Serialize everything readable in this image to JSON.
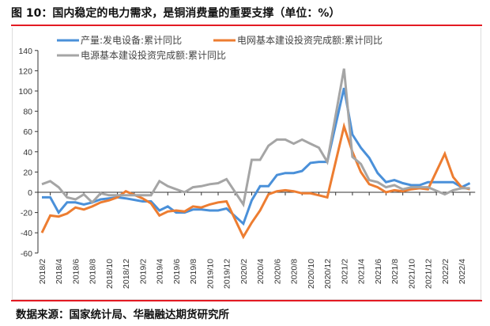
{
  "title": "图 10：国内稳定的电力需求，是铜消费量的重要支撑（单位：%）",
  "source": "数据来源：国家统计局、华融融达期货研究所",
  "chart_data": {
    "type": "line",
    "title": "",
    "xlabel": "",
    "ylabel": "",
    "ylim": [
      -60,
      140
    ],
    "yticks": [
      -60,
      -40,
      -20,
      0,
      20,
      40,
      60,
      80,
      100,
      120,
      140
    ],
    "xtick_labels": [
      "2018/2",
      "2018/4",
      "2018/6",
      "2018/8",
      "2018/10",
      "2018/12",
      "2019/2",
      "2019/4",
      "2019/6",
      "2019/8",
      "2019/10",
      "2019/12",
      "2020/2",
      "2020/4",
      "2020/6",
      "2020/8",
      "2020/10",
      "2020/12",
      "2021/2",
      "2021/4",
      "2021/6",
      "2021/8",
      "2021/10",
      "2021/12",
      "2022/2",
      "2022/4"
    ],
    "x": [
      "2018/2",
      "2018/3",
      "2018/4",
      "2018/5",
      "2018/6",
      "2018/7",
      "2018/8",
      "2018/9",
      "2018/10",
      "2018/11",
      "2018/12",
      "2019/2",
      "2019/3",
      "2019/4",
      "2019/5",
      "2019/6",
      "2019/7",
      "2019/8",
      "2019/9",
      "2019/10",
      "2019/11",
      "2019/12",
      "2020/2",
      "2020/3",
      "2020/4",
      "2020/5",
      "2020/6",
      "2020/7",
      "2020/8",
      "2020/9",
      "2020/10",
      "2020/11",
      "2020/12",
      "2021/2",
      "2021/3",
      "2021/4",
      "2021/5",
      "2021/6",
      "2021/7",
      "2021/8",
      "2021/9",
      "2021/10",
      "2021/11",
      "2021/12",
      "2022/2",
      "2022/3",
      "2022/4",
      "2022/5"
    ],
    "grid": false,
    "legend": "top",
    "series": [
      {
        "name": "产量:发电设备:累计同比",
        "color": "#4a90d9",
        "values": [
          -5,
          -5,
          -20,
          -10,
          -10,
          -12,
          -10,
          -7,
          -6,
          -5,
          -6,
          -9,
          -9,
          -18,
          -14,
          -20,
          -20,
          -17,
          -17,
          -18,
          -18,
          -16,
          -31,
          -8,
          6,
          6,
          17,
          19,
          19,
          21,
          29,
          30,
          30,
          103,
          57,
          44,
          34,
          19,
          10,
          12,
          9,
          7,
          7,
          10,
          10,
          10,
          5,
          9
        ]
      },
      {
        "name": "电网基本建设投资完成额:累计同比",
        "color": "#ed7d31",
        "values": [
          -40,
          -23,
          -24,
          -21,
          -15,
          -17,
          -14,
          -10,
          -8,
          -5,
          1,
          -6,
          -11,
          -23,
          -19,
          -18,
          -19,
          -14,
          -15,
          -12,
          -10,
          -9,
          -44,
          -30,
          -18,
          -2,
          1,
          2,
          1,
          -1,
          -1,
          -3,
          -5,
          65,
          40,
          20,
          8,
          5,
          0,
          2,
          1,
          3,
          4,
          3,
          38,
          15,
          5,
          3
        ]
      },
      {
        "name": "电源基本建设投资完成额:累计同比",
        "color": "#a5a5a5",
        "values": [
          8,
          11,
          5,
          -5,
          -7,
          -2,
          -10,
          -1,
          -3,
          -3,
          -3,
          -3,
          -3,
          11,
          6,
          3,
          0,
          5,
          6,
          8,
          9,
          13,
          -12,
          32,
          32,
          46,
          52,
          52,
          48,
          52,
          48,
          44,
          30,
          122,
          35,
          28,
          12,
          10,
          5,
          7,
          3,
          5,
          5,
          5,
          -2,
          2,
          4,
          4
        ]
      }
    ]
  }
}
